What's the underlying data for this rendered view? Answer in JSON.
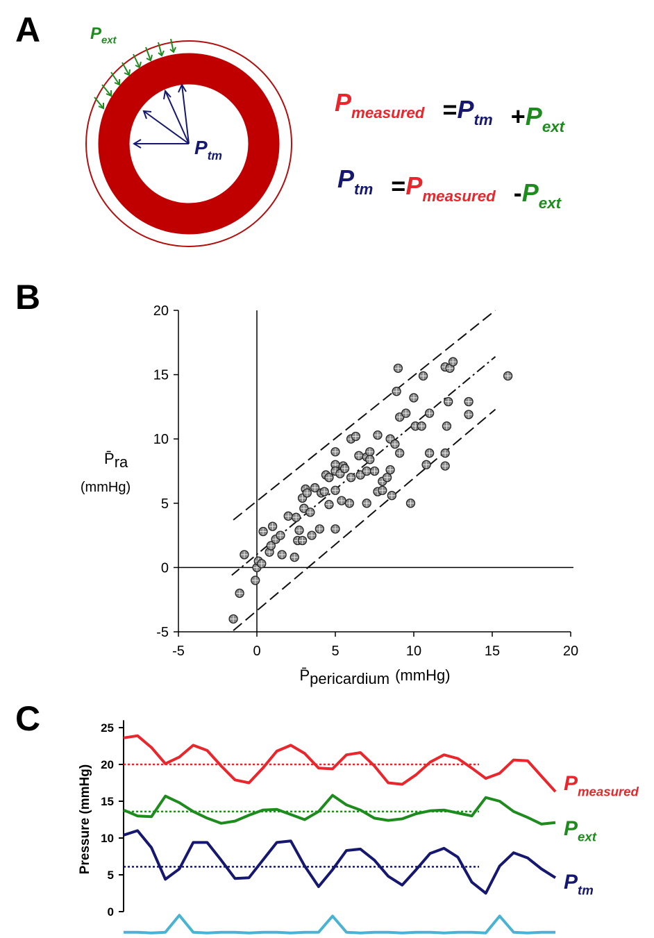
{
  "panels": [
    "A",
    "B",
    "C"
  ],
  "diagram": {
    "labels": [
      {
        "symbol": "P",
        "subscript": "ext",
        "color": "#1e8b1e"
      },
      {
        "symbol": "P",
        "subscript": "tm",
        "color": "#15186e"
      }
    ],
    "equations": [
      [
        {
          "symbol": "P",
          "subscript": "measured",
          "color": "#e8262c"
        },
        {
          "operator": "="
        },
        {
          "symbol": "P",
          "subscript": "tm",
          "color": "#15186e"
        },
        {
          "operator": "+"
        },
        {
          "symbol": "P",
          "subscript": "ext",
          "color": "#1e8b1e"
        }
      ],
      [
        {
          "symbol": "P",
          "subscript": "tm",
          "color": "#15186e"
        },
        {
          "operator": "="
        },
        {
          "symbol": "P",
          "subscript": "measured",
          "color": "#e8262c"
        },
        {
          "operator": "-"
        },
        {
          "symbol": "P",
          "subscript": "ext",
          "color": "#1e8b1e"
        }
      ]
    ]
  },
  "chart_data": [
    {
      "type": "scatter",
      "xlabel": {
        "symbol": "P̄",
        "subscript": "pericardium",
        "unit": "(mmHg)"
      },
      "ylabel": {
        "symbol": "P̄",
        "subscript": "ra",
        "unit": "(mmHg)"
      },
      "xlim": [
        -5,
        20
      ],
      "ylim": [
        -5,
        20
      ],
      "xticks": [
        -5,
        0,
        5,
        10,
        15,
        20
      ],
      "yticks": [
        -5,
        0,
        5,
        10,
        15,
        20
      ],
      "color": "#8a8a8a",
      "x": [
        -1.5,
        -1.1,
        -0.8,
        -0.1,
        0,
        0.1,
        0.3,
        0.4,
        0.8,
        0.9,
        1,
        1.2,
        1.5,
        1.6,
        2,
        2.4,
        2.5,
        2.6,
        2.7,
        2.9,
        2.9,
        3,
        3.1,
        3.2,
        3.4,
        3.5,
        3.7,
        4,
        4.1,
        4.3,
        4.4,
        4.6,
        4.6,
        5,
        5,
        5,
        5,
        5,
        5.3,
        5.4,
        5.5,
        5.6,
        5.9,
        6,
        6,
        6.3,
        6.5,
        6.6,
        7,
        7,
        7,
        7.2,
        7.2,
        7.5,
        7.7,
        7.7,
        8,
        8,
        8.3,
        8.5,
        8.5,
        8.6,
        8.8,
        8.9,
        9,
        9.1,
        9.1,
        9.5,
        9.8,
        10,
        10.1,
        10.5,
        10.6,
        10.8,
        11,
        11,
        12,
        12,
        12,
        12.1,
        12.2,
        12.3,
        12.5,
        13.5,
        13.5,
        16
      ],
      "y": [
        -4,
        -2,
        1,
        -1,
        0,
        0.5,
        0.3,
        2.8,
        1.2,
        1.7,
        3.2,
        2.2,
        2.5,
        1,
        4,
        0.8,
        3.9,
        2.1,
        2.9,
        2.1,
        5.4,
        4.6,
        6.1,
        5.8,
        4.3,
        2.5,
        6.2,
        3,
        5.8,
        5.9,
        7.2,
        7,
        4.9,
        9,
        8,
        7.5,
        6,
        3,
        7.3,
        5.2,
        7.9,
        7.7,
        5,
        7,
        10,
        10.2,
        8.7,
        7.2,
        8.6,
        7.5,
        5,
        9,
        8.4,
        7.5,
        10.3,
        5.9,
        6,
        6.7,
        7,
        10,
        7.6,
        5.6,
        9.6,
        13.7,
        15.5,
        11.7,
        8.9,
        12,
        5,
        13.2,
        11,
        11,
        14.9,
        8,
        12,
        8.9,
        15.6,
        8.9,
        7.9,
        11,
        12.9,
        15.5,
        16,
        12.9,
        11.9,
        14.9
      ],
      "lines": [
        {
          "style": "dashed",
          "x": [
            -1.5,
            15.2
          ],
          "y": [
            3.7,
            20
          ]
        },
        {
          "style": "dashdot",
          "x": [
            -1.6,
            15.2
          ],
          "y": [
            -0.6,
            16.4
          ]
        },
        {
          "style": "dashed",
          "x": [
            -1.5,
            15.2
          ],
          "y": [
            -4.9,
            12.3
          ]
        }
      ]
    },
    {
      "type": "line",
      "ylabel": "Pressure (mmHg)",
      "ylim": [
        -3.5,
        26
      ],
      "yticks": [
        0,
        5,
        10,
        15,
        20,
        25
      ],
      "series": [
        {
          "label": {
            "symbol": "P",
            "subscript": "measured"
          },
          "color": "#e8262c",
          "mean": 20,
          "values": [
            23.6,
            23.9,
            22.3,
            20.1,
            21.0,
            22.6,
            21.9,
            19.8,
            17.9,
            17.5,
            19.5,
            21.8,
            22.6,
            21.5,
            19.5,
            19.4,
            21.3,
            21.6,
            19.8,
            17.5,
            17.3,
            18.6,
            20.3,
            21.3,
            20.8,
            19.5,
            18.1,
            18.8,
            20.6,
            20.5,
            18.4,
            16.3
          ]
        },
        {
          "label": {
            "symbol": "P",
            "subscript": "ext"
          },
          "color": "#1e8b1e",
          "mean": 13.6,
          "values": [
            13.8,
            13.0,
            12.9,
            15.7,
            14.8,
            13.6,
            12.7,
            12.0,
            12.3,
            13.1,
            13.8,
            13.9,
            13.2,
            12.5,
            13.6,
            15.8,
            14.5,
            13.8,
            12.7,
            12.4,
            12.6,
            13.3,
            13.7,
            13.8,
            13.4,
            13.0,
            15.5,
            15.0,
            13.6,
            12.8,
            11.9,
            12.1
          ]
        },
        {
          "label": {
            "symbol": "P",
            "subscript": "tm"
          },
          "color": "#15186e",
          "mean": 6.1,
          "values": [
            10.4,
            11.0,
            8.7,
            4.4,
            5.8,
            9.4,
            9.4,
            7.0,
            4.5,
            4.6,
            7.0,
            9.4,
            9.6,
            6.2,
            3.4,
            5.7,
            8.3,
            8.5,
            7.0,
            4.8,
            3.6,
            5.7,
            7.9,
            8.6,
            7.4,
            4.0,
            2.5,
            6.2,
            8.0,
            7.3,
            5.8,
            4.6
          ]
        },
        {
          "color": "#4ab3d1",
          "values": [
            -2.8,
            -2.8,
            -2.9,
            -2.8,
            -0.5,
            -2.8,
            -2.9,
            -2.8,
            -2.8,
            -2.9,
            -2.8,
            -2.8,
            -2.9,
            -2.8,
            -2.8,
            -0.6,
            -2.8,
            -2.9,
            -2.8,
            -2.8,
            -2.9,
            -2.8,
            -2.8,
            -2.9,
            -2.8,
            -2.8,
            -2.9,
            -0.6,
            -2.8,
            -2.9,
            -2.8,
            -2.8
          ]
        }
      ]
    }
  ]
}
